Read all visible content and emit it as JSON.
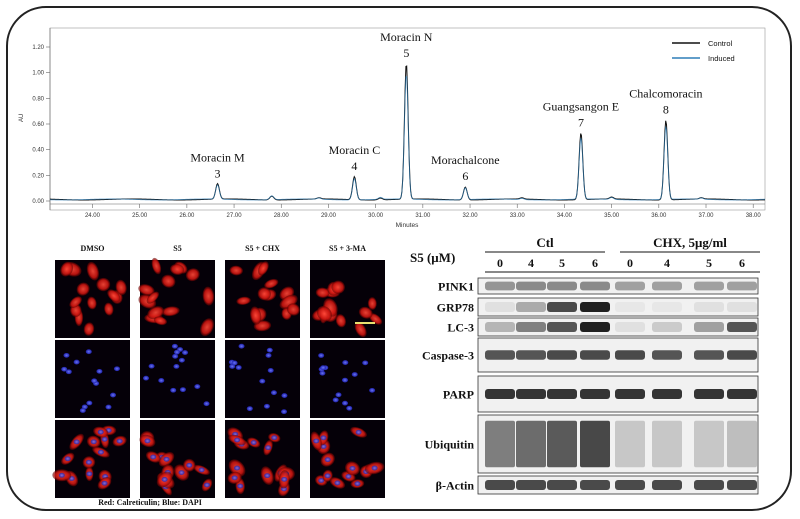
{
  "hplc": {
    "y_unit": "AU",
    "x_title": "Minutes",
    "y_ticks": [
      "0.00",
      "0.20",
      "0.40",
      "0.60",
      "0.80",
      "1.00",
      "1.20"
    ],
    "x_ticks": [
      "24.00",
      "25.00",
      "26.00",
      "27.00",
      "28.00",
      "29.00",
      "30.00",
      "31.00",
      "32.00",
      "33.00",
      "34.00",
      "35.00",
      "36.00",
      "37.00",
      "38.00"
    ],
    "legend": [
      {
        "name": "Control",
        "color": "#111111"
      },
      {
        "name": "Induced",
        "color": "#2e7fb8"
      }
    ],
    "peaks": [
      {
        "name": "Moracin M",
        "number": "3",
        "minute": 26.65,
        "au": 0.12
      },
      {
        "name": "Moracin C",
        "number": "4",
        "minute": 29.55,
        "au": 0.18
      },
      {
        "name": "Moracin N",
        "number": "5",
        "minute": 30.65,
        "au": 1.06
      },
      {
        "name": "Morachalcone",
        "number": "6",
        "minute": 31.9,
        "au": 0.1
      },
      {
        "name": "Guangsangon E",
        "number": "7",
        "minute": 34.35,
        "au": 0.52
      },
      {
        "name": "Chalcomoracin",
        "number": "8",
        "minute": 36.15,
        "au": 0.62
      }
    ]
  },
  "micro": {
    "columns": [
      "DMSO",
      "S5",
      "S5 + CHX",
      "S5 + 3-MA"
    ],
    "caption": "Red: Calreticulin; Blue: DAPI"
  },
  "blot": {
    "dose_label": "S5 (μM)",
    "groups": [
      {
        "label": "Ctl",
        "doses": [
          "0",
          "4",
          "5",
          "6"
        ]
      },
      {
        "label": "CHX, 5μg/ml",
        "doses": [
          "0",
          "4",
          "5",
          "6"
        ]
      }
    ],
    "rows": [
      {
        "label": "PINK1",
        "intensity": [
          0.4,
          0.45,
          0.45,
          0.45,
          0.35,
          0.35,
          0.35,
          0.35
        ]
      },
      {
        "label": "GRP78",
        "intensity": [
          0.05,
          0.3,
          0.75,
          0.95,
          0.02,
          0.02,
          0.05,
          0.05
        ]
      },
      {
        "label": "LC-3",
        "intensity": [
          0.25,
          0.5,
          0.7,
          0.95,
          0.05,
          0.15,
          0.35,
          0.7
        ]
      },
      {
        "label": "Caspase-3",
        "intensity": [
          0.7,
          0.7,
          0.75,
          0.75,
          0.75,
          0.7,
          0.7,
          0.75
        ]
      },
      {
        "label": "PARP",
        "intensity": [
          0.85,
          0.85,
          0.85,
          0.85,
          0.85,
          0.85,
          0.85,
          0.85
        ]
      },
      {
        "label": "Ubiquitin",
        "intensity": [
          0.6,
          0.7,
          0.8,
          0.9,
          0.2,
          0.2,
          0.2,
          0.25
        ]
      },
      {
        "label": "β-Actin",
        "intensity": [
          0.75,
          0.75,
          0.75,
          0.75,
          0.75,
          0.75,
          0.75,
          0.75
        ]
      }
    ]
  }
}
